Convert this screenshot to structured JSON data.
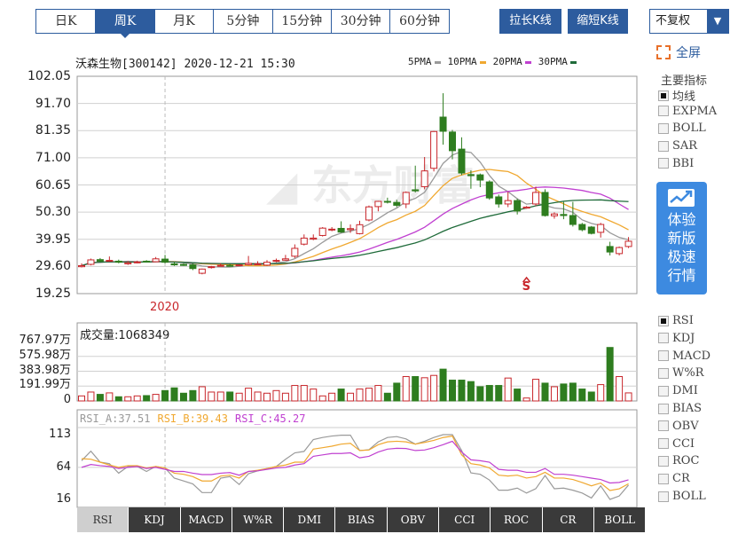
{
  "period_tabs": [
    {
      "label": "日K"
    },
    {
      "label": "周K",
      "active": true
    },
    {
      "label": "月K"
    },
    {
      "label": "5分钟"
    },
    {
      "label": "15分钟"
    },
    {
      "label": "30分钟"
    },
    {
      "label": "60分钟"
    }
  ],
  "toolbar": {
    "stretch_label": "拉长K线",
    "shrink_label": "缩短K线",
    "adjust_select": "不复权",
    "fullscreen_label": "全屏"
  },
  "chart_header": {
    "title": "沃森生物[300142] 2020-12-21 15:30"
  },
  "legend": [
    {
      "label": "5PMA",
      "color": "#9a9a9a"
    },
    {
      "label": "10PMA",
      "color": "#f0a830"
    },
    {
      "label": "20PMA",
      "color": "#c040d0"
    },
    {
      "label": "30PMA",
      "color": "#1f6b3a"
    }
  ],
  "watermark": "东方财富",
  "colors": {
    "up": "#c8262b",
    "down": "#2e7d1f",
    "accent": "#2d5c9e"
  },
  "side_panel": {
    "main_title": "主要指标",
    "main_indicators": [
      {
        "label": "均线",
        "checked": true
      },
      {
        "label": "EXPMA"
      },
      {
        "label": "BOLL"
      },
      {
        "label": "SAR"
      },
      {
        "label": "BBI"
      }
    ],
    "promo": [
      "体验",
      "新版",
      "极速",
      "行情"
    ],
    "sub_indicators": [
      {
        "label": "RSI",
        "checked": true
      },
      {
        "label": "KDJ"
      },
      {
        "label": "MACD"
      },
      {
        "label": "W%R"
      },
      {
        "label": "DMI"
      },
      {
        "label": "BIAS"
      },
      {
        "label": "OBV"
      },
      {
        "label": "CCI"
      },
      {
        "label": "ROC"
      },
      {
        "label": "CR"
      },
      {
        "label": "BOLL"
      }
    ]
  },
  "indicator_tabs": [
    {
      "label": "RSI",
      "active": true
    },
    {
      "label": "KDJ"
    },
    {
      "label": "MACD"
    },
    {
      "label": "W%R"
    },
    {
      "label": "DMI"
    },
    {
      "label": "BIAS"
    },
    {
      "label": "OBV"
    },
    {
      "label": "CCI"
    },
    {
      "label": "ROC"
    },
    {
      "label": "CR"
    },
    {
      "label": "BOLL"
    }
  ],
  "volume": {
    "header": "成交量:1068349",
    "tick_labels": [
      "767.97万",
      "575.98万",
      "383.98万",
      "191.99万",
      "0"
    ]
  },
  "rsi": {
    "labels": [
      {
        "text": "RSI_A:37.51",
        "color": "#9a9a9a"
      },
      {
        "text": "RSI_B:39.43",
        "color": "#f0a830"
      },
      {
        "text": "RSI_C:45.27",
        "color": "#c040d0"
      }
    ],
    "tick_labels": [
      "113",
      "64",
      "16"
    ]
  },
  "chart_data": {
    "type": "candlestick",
    "x_label_marks": [
      {
        "index": 9,
        "text": "2020"
      }
    ],
    "signal_marks": [
      {
        "index": 48,
        "text": "S"
      }
    ],
    "price_axis": {
      "ylim": [
        19.25,
        102.05
      ],
      "ticks": [
        "102.05",
        "91.70",
        "81.35",
        "71.00",
        "60.65",
        "50.30",
        "39.95",
        "29.60",
        "19.25"
      ]
    },
    "ohlc": [
      [
        29.5,
        30.8,
        29.2,
        29.9
      ],
      [
        30.4,
        32.6,
        30.0,
        32.1
      ],
      [
        32.2,
        32.8,
        31.4,
        31.6
      ],
      [
        31.6,
        33.4,
        31.4,
        31.9
      ],
      [
        31.6,
        32.2,
        30.8,
        31.2
      ],
      [
        30.6,
        31.6,
        30.2,
        31.0
      ],
      [
        31.0,
        31.8,
        30.8,
        31.3
      ],
      [
        31.6,
        32.0,
        31.2,
        31.4
      ],
      [
        31.4,
        33.2,
        31.2,
        32.5
      ],
      [
        32.4,
        34.0,
        30.8,
        31.2
      ],
      [
        30.6,
        31.2,
        29.8,
        30.2
      ],
      [
        30.4,
        30.8,
        29.8,
        30.0
      ],
      [
        30.2,
        30.8,
        28.2,
        28.8
      ],
      [
        27.0,
        28.8,
        26.6,
        28.6
      ],
      [
        29.2,
        29.8,
        28.8,
        29.5
      ],
      [
        29.8,
        30.8,
        29.6,
        30.0
      ],
      [
        30.0,
        30.9,
        29.8,
        29.9
      ],
      [
        30.0,
        30.4,
        29.8,
        30.2
      ],
      [
        30.3,
        33.6,
        30.0,
        30.8
      ],
      [
        30.4,
        31.6,
        30.2,
        30.6
      ],
      [
        30.1,
        32.0,
        29.8,
        31.2
      ],
      [
        31.6,
        32.6,
        31.2,
        31.9
      ],
      [
        32.0,
        34.0,
        31.8,
        32.5
      ],
      [
        33.5,
        38.0,
        32.8,
        36.5
      ],
      [
        38.1,
        41.8,
        37.6,
        40.4
      ],
      [
        40.0,
        41.8,
        39.6,
        40.4
      ],
      [
        41.4,
        44.6,
        41.0,
        44.2
      ],
      [
        43.6,
        44.6,
        43.0,
        43.8
      ],
      [
        44.1,
        46.8,
        42.4,
        42.7
      ],
      [
        43.6,
        45.6,
        42.4,
        44.0
      ],
      [
        42.1,
        47.0,
        41.8,
        45.5
      ],
      [
        47.3,
        52.8,
        46.8,
        52.3
      ],
      [
        52.4,
        54.6,
        50.6,
        54.4
      ],
      [
        54.4,
        55.8,
        53.6,
        54.2
      ],
      [
        54.0,
        55.0,
        52.2,
        52.9
      ],
      [
        53.4,
        58.2,
        51.8,
        57.8
      ],
      [
        58.8,
        68.0,
        57.8,
        58.4
      ],
      [
        60.0,
        71.3,
        59.0,
        66.0
      ],
      [
        67.0,
        81.2,
        65.8,
        81.0
      ],
      [
        86.5,
        95.6,
        76.0,
        81.1
      ],
      [
        80.8,
        81.6,
        70.4,
        73.7
      ],
      [
        74.3,
        78.8,
        64.4,
        65.2
      ],
      [
        64.6,
        66.2,
        59.2,
        64.2
      ],
      [
        64.5,
        65.0,
        59.8,
        62.5
      ],
      [
        61.8,
        62.4,
        55.0,
        55.7
      ],
      [
        56.1,
        57.0,
        52.0,
        53.4
      ],
      [
        53.4,
        58.0,
        52.2,
        54.7
      ],
      [
        54.7,
        55.4,
        49.4,
        50.7
      ],
      [
        51.8,
        52.6,
        51.6,
        52.2
      ],
      [
        53.4,
        60.0,
        52.6,
        57.8
      ],
      [
        57.8,
        59.0,
        48.6,
        49.0
      ],
      [
        48.9,
        50.2,
        47.8,
        49.6
      ],
      [
        49.4,
        54.2,
        47.6,
        49.0
      ],
      [
        49.0,
        54.2,
        44.8,
        45.6
      ],
      [
        45.6,
        46.2,
        43.0,
        43.6
      ],
      [
        44.6,
        45.0,
        41.8,
        42.2
      ],
      [
        42.6,
        46.2,
        40.6,
        45.6
      ],
      [
        37.2,
        39.0,
        33.8,
        35.1
      ],
      [
        34.5,
        37.2,
        33.8,
        36.8
      ],
      [
        37.2,
        40.8,
        36.6,
        39.2
      ]
    ],
    "ma_periods": [
      5,
      10,
      20,
      30
    ],
    "volume_wan": [
      65,
      115,
      85,
      104,
      54,
      54,
      65,
      69,
      85,
      134,
      169,
      100,
      134,
      184,
      115,
      115,
      115,
      100,
      165,
      115,
      100,
      134,
      100,
      200,
      200,
      154,
      65,
      100,
      154,
      100,
      154,
      165,
      200,
      100,
      230,
      315,
      315,
      300,
      330,
      411,
      269,
      269,
      250,
      184,
      200,
      200,
      296,
      154,
      38,
      280,
      230,
      184,
      219,
      230,
      154,
      115,
      211,
      691,
      315,
      104
    ],
    "volume_ylim": [
      0,
      767.97
    ],
    "rsi_ylim": [
      16,
      113
    ],
    "rsi_series": [
      {
        "name": "RSI_A",
        "values": [
          74,
          88.3,
          71.8,
          69.6,
          55.3,
          65.3,
          65.3,
          57.9,
          65.3,
          63.1,
          47.9,
          43.6,
          39.2,
          26.2,
          26.2,
          47.9,
          50.1,
          38.3,
          54.5,
          58.8,
          62.3,
          65.3,
          76.1,
          85.7,
          87.9,
          105.7,
          108.8,
          110.9,
          112.2,
          112.2,
          89.2,
          90.5,
          102.2,
          108.8,
          110.1,
          106.6,
          98.8,
          103.1,
          108.8,
          113,
          113,
          89.2,
          55.8,
          53.6,
          45,
          29.8,
          29.8,
          32.9,
          25.5,
          32,
          51.8,
          32,
          32.9,
          29.8,
          25.5,
          18.1,
          36.3,
          16,
          21.1,
          37.5
        ]
      },
      {
        "name": "RSI_B",
        "values": [
          77,
          76.2,
          71.8,
          67.5,
          64,
          66.6,
          66.6,
          63.1,
          65.3,
          63.1,
          55.3,
          53.6,
          50.1,
          43.6,
          43.6,
          51,
          52.3,
          48,
          58,
          59.7,
          62.3,
          65.3,
          67.5,
          71.8,
          71.8,
          91.3,
          93.5,
          95.7,
          98.8,
          100,
          89.2,
          90,
          97.9,
          102.2,
          103.1,
          102.2,
          98.8,
          101.4,
          104.4,
          108.7,
          110.9,
          82.7,
          69.6,
          67.5,
          63.1,
          52.3,
          51,
          52.3,
          48,
          50.1,
          56.6,
          48,
          48,
          45.8,
          41.4,
          36.3,
          40.6,
          29.3,
          31.9,
          39.4
        ]
      },
      {
        "name": "RSI_C",
        "values": [
          64,
          68.3,
          66.6,
          65.3,
          62.3,
          64,
          65.3,
          62.3,
          64,
          61,
          57.9,
          57.9,
          55.3,
          53.2,
          53.2,
          55.3,
          56.2,
          52.3,
          57.9,
          58.8,
          61,
          63.1,
          64,
          67.5,
          69.6,
          80.5,
          82.7,
          84.8,
          84.8,
          85.7,
          78.3,
          80.5,
          87,
          91.3,
          92.6,
          92.2,
          89.2,
          90,
          93.5,
          97.9,
          103.1,
          87,
          75.3,
          74,
          71.8,
          61,
          59.7,
          59.7,
          56.6,
          56.6,
          62.3,
          53.6,
          53.6,
          52.3,
          50.1,
          47.9,
          45.8,
          40.6,
          41.4,
          45.3
        ]
      }
    ]
  }
}
